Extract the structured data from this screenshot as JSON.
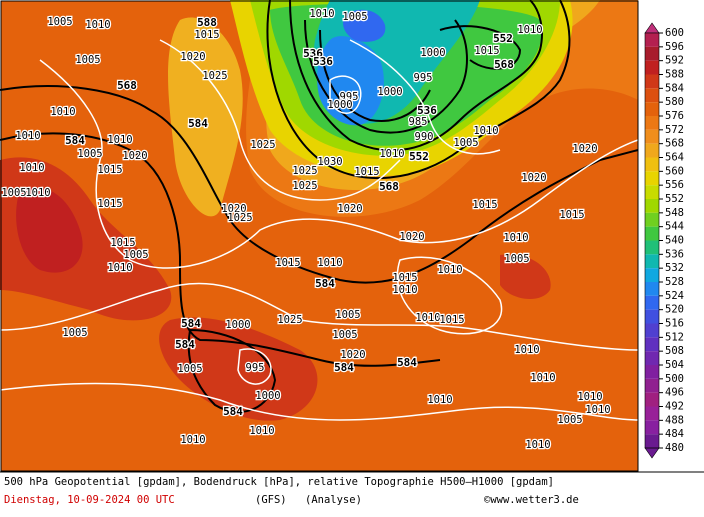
{
  "colorbar": {
    "levels": [
      600,
      596,
      592,
      588,
      584,
      580,
      576,
      572,
      568,
      564,
      560,
      556,
      552,
      548,
      544,
      540,
      536,
      532,
      528,
      524,
      520,
      516,
      512,
      508,
      504,
      500,
      496,
      492,
      488,
      484,
      480
    ],
    "colors": [
      "#c0307a",
      "#b42050",
      "#a81c2c",
      "#c02020",
      "#d03818",
      "#dc5010",
      "#e4620c",
      "#ec7814",
      "#f08e1c",
      "#f0a81c",
      "#f0c010",
      "#e8d400",
      "#c8dc00",
      "#a0d800",
      "#70d020",
      "#40c840",
      "#20c078",
      "#10b8b0",
      "#10a8e0",
      "#2088f0",
      "#3068f0",
      "#4050e0",
      "#5040d0",
      "#6030c0",
      "#7028b0",
      "#8020a0",
      "#902090",
      "#a02080",
      "#982098",
      "#8820a0",
      "#6a1a90"
    ]
  },
  "map_labels": {
    "geopotential": [
      "588",
      "568",
      "584",
      "584",
      "536",
      "536",
      "552",
      "568",
      "536",
      "552",
      "568",
      "584",
      "584",
      "584",
      "584",
      "584",
      "584"
    ],
    "pressure": [
      "1005",
      "1010",
      "1010",
      "1005",
      "1015",
      "1020",
      "1025",
      "1005",
      "1010",
      "1010",
      "1010",
      "1005",
      "1020",
      "1015",
      "1010",
      "1005",
      "1010",
      "1015",
      "1000",
      "1015",
      "1010",
      "995",
      "1000",
      "995",
      "1000",
      "985",
      "990",
      "1005",
      "1010",
      "1020",
      "1020",
      "1015",
      "1015",
      "1010",
      "1020",
      "1025",
      "1025",
      "1025",
      "1030",
      "1010",
      "1015",
      "1020",
      "1020",
      "1025",
      "1015",
      "1005",
      "1010",
      "1015",
      "1010",
      "1015",
      "1010",
      "1010",
      "1005",
      "1005",
      "1000",
      "1005",
      "995",
      "1000",
      "1005",
      "1010",
      "1010",
      "1010",
      "1010",
      "1010",
      "1005",
      "1010",
      "1010",
      "1010",
      "1010",
      "1015",
      "1005",
      "1020",
      "1025"
    ]
  },
  "caption": {
    "description": "500 hPa Geopotential [gpdam], Bodendruck [hPa], relative Topographie H500—H1000 [gpdam]",
    "date": "Dienstag, 10-09-2024  00 UTC",
    "model": "(GFS)",
    "run": "(Analyse)",
    "credit": "©www.wetter3.de"
  }
}
